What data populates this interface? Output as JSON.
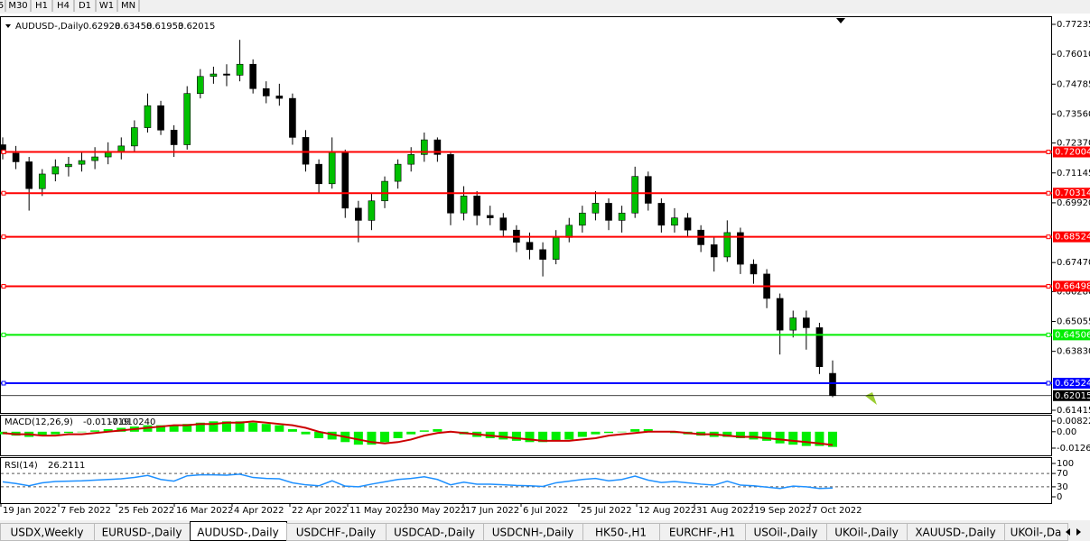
{
  "toolbar": {
    "timeframes": [
      "5",
      "M30",
      "H1",
      "H4",
      "D1",
      "W1",
      "MN"
    ]
  },
  "chart": {
    "symbol": "AUDUSD-,Daily",
    "candles": [
      [
        0.723,
        0.726,
        0.717,
        0.7195
      ],
      [
        0.7195,
        0.7225,
        0.713,
        0.716
      ],
      [
        0.716,
        0.718,
        0.696,
        0.705
      ],
      [
        0.705,
        0.713,
        0.702,
        0.711
      ],
      [
        0.711,
        0.717,
        0.708,
        0.714
      ],
      [
        0.714,
        0.718,
        0.71,
        0.715
      ],
      [
        0.715,
        0.72,
        0.712,
        0.7165
      ],
      [
        0.7165,
        0.722,
        0.713,
        0.718
      ],
      [
        0.718,
        0.724,
        0.715,
        0.72
      ],
      [
        0.72,
        0.726,
        0.717,
        0.7225
      ],
      [
        0.7225,
        0.733,
        0.72,
        0.73
      ],
      [
        0.73,
        0.744,
        0.728,
        0.739
      ],
      [
        0.739,
        0.741,
        0.727,
        0.729
      ],
      [
        0.729,
        0.731,
        0.718,
        0.723
      ],
      [
        0.723,
        0.747,
        0.721,
        0.744
      ],
      [
        0.744,
        0.754,
        0.742,
        0.751
      ],
      [
        0.751,
        0.755,
        0.748,
        0.752
      ],
      [
        0.752,
        0.756,
        0.747,
        0.7515
      ],
      [
        0.7515,
        0.766,
        0.749,
        0.756
      ],
      [
        0.756,
        0.758,
        0.744,
        0.746
      ],
      [
        0.746,
        0.749,
        0.74,
        0.743
      ],
      [
        0.743,
        0.748,
        0.739,
        0.742
      ],
      [
        0.742,
        0.744,
        0.723,
        0.726
      ],
      [
        0.726,
        0.729,
        0.712,
        0.715
      ],
      [
        0.715,
        0.717,
        0.703,
        0.707
      ],
      [
        0.707,
        0.726,
        0.705,
        0.72
      ],
      [
        0.72,
        0.721,
        0.693,
        0.697
      ],
      [
        0.697,
        0.7,
        0.683,
        0.692
      ],
      [
        0.692,
        0.703,
        0.688,
        0.7
      ],
      [
        0.7,
        0.71,
        0.697,
        0.708
      ],
      [
        0.708,
        0.717,
        0.705,
        0.715
      ],
      [
        0.715,
        0.722,
        0.712,
        0.719
      ],
      [
        0.719,
        0.728,
        0.716,
        0.725
      ],
      [
        0.725,
        0.726,
        0.716,
        0.719
      ],
      [
        0.719,
        0.72,
        0.69,
        0.695
      ],
      [
        0.695,
        0.706,
        0.692,
        0.702
      ],
      [
        0.702,
        0.704,
        0.69,
        0.694
      ],
      [
        0.694,
        0.698,
        0.69,
        0.693
      ],
      [
        0.693,
        0.695,
        0.685,
        0.688
      ],
      [
        0.688,
        0.69,
        0.679,
        0.683
      ],
      [
        0.683,
        0.687,
        0.676,
        0.68
      ],
      [
        0.68,
        0.683,
        0.669,
        0.676
      ],
      [
        0.676,
        0.688,
        0.674,
        0.685
      ],
      [
        0.685,
        0.693,
        0.683,
        0.69
      ],
      [
        0.69,
        0.698,
        0.687,
        0.695
      ],
      [
        0.695,
        0.704,
        0.692,
        0.699
      ],
      [
        0.699,
        0.701,
        0.688,
        0.692
      ],
      [
        0.692,
        0.698,
        0.687,
        0.695
      ],
      [
        0.695,
        0.714,
        0.693,
        0.71
      ],
      [
        0.71,
        0.712,
        0.696,
        0.699
      ],
      [
        0.699,
        0.701,
        0.687,
        0.69
      ],
      [
        0.69,
        0.697,
        0.687,
        0.693
      ],
      [
        0.693,
        0.695,
        0.685,
        0.688
      ],
      [
        0.688,
        0.69,
        0.679,
        0.682
      ],
      [
        0.682,
        0.685,
        0.671,
        0.677
      ],
      [
        0.677,
        0.692,
        0.675,
        0.687
      ],
      [
        0.687,
        0.689,
        0.67,
        0.674
      ],
      [
        0.674,
        0.676,
        0.666,
        0.67
      ],
      [
        0.67,
        0.672,
        0.656,
        0.66
      ],
      [
        0.66,
        0.662,
        0.637,
        0.647
      ],
      [
        0.647,
        0.655,
        0.644,
        0.652
      ],
      [
        0.652,
        0.655,
        0.639,
        0.648
      ],
      [
        0.648,
        0.65,
        0.629,
        0.632
      ],
      [
        0.62928,
        0.63458,
        0.61953,
        0.62015
      ]
    ],
    "bull_color": "#00c000",
    "bear_color": "#000000",
    "price_ticks": [
      0.77235,
      {
        "value": 0.7601,
        "label": "0.76010"
      },
      0.74785,
      {
        "value": 0.7356,
        "label": "0.73560"
      },
      {
        "value": 0.7237,
        "label": "0.72370"
      },
      0.71145,
      {
        "value": 0.6992,
        "label": "0.69920"
      },
      {
        "value": 0.6747,
        "label": "0.67470"
      },
      {
        "value": 0.6628,
        "label": "0.66280"
      },
      0.65055,
      {
        "value": 0.6383,
        "label": "0.63830"
      },
      0.61415
    ],
    "levels": [
      {
        "value": 0.72004,
        "color": "#ff0000"
      },
      {
        "value": 0.70314,
        "color": "#ff0000"
      },
      {
        "value": 0.68524,
        "color": "#ff0000"
      },
      {
        "value": 0.66498,
        "color": "#ff0000"
      },
      {
        "value": 0.64506,
        "color": "#00ee00"
      },
      {
        "value": 0.62524,
        "color": "#0000ff"
      }
    ],
    "dates": [
      "19 Jan 2022",
      "7 Feb 2022",
      "25 Feb 2022",
      "16 Mar 2022",
      "4 Apr 2022",
      "22 Apr 2022",
      "11 May 2022",
      "30 May 2022",
      "17 Jun 2022",
      "6 Jul 2022",
      "25 Jul 2022",
      "12 Aug 2022",
      "31 Aug 2022",
      "19 Sep 2022",
      "7 Oct 2022"
    ]
  },
  "macd": {
    "name": "MACD(12,26,9)",
    "main_label": -0.011719,
    "signal_label": {
      "value": -0.01024,
      "label": "-0.010240"
    },
    "ticks": [
      0.008223,
      {
        "value": 0,
        "label": "0.00"
      },
      -0.012669
    ],
    "histogram": [
      -0.002,
      -0.003,
      -0.004,
      -0.003,
      -0.002,
      -0.001,
      0.0,
      0.001,
      0.002,
      0.003,
      0.004,
      0.005,
      0.005,
      0.005,
      0.006,
      0.007,
      0.008,
      0.008,
      0.008,
      0.007,
      0.006,
      0.005,
      0.002,
      -0.002,
      -0.005,
      -0.006,
      -0.008,
      -0.01,
      -0.01,
      -0.008,
      -0.005,
      -0.002,
      0.001,
      0.002,
      0.0,
      -0.002,
      -0.004,
      -0.005,
      -0.006,
      -0.007,
      -0.008,
      -0.008,
      -0.007,
      -0.006,
      -0.004,
      -0.002,
      -0.001,
      0.0,
      0.002,
      0.002,
      0.0,
      -0.001,
      -0.002,
      -0.003,
      -0.004,
      -0.004,
      -0.005,
      -0.006,
      -0.007,
      -0.009,
      -0.01,
      -0.011,
      -0.011,
      -0.011719
    ],
    "signal": [
      -0.001,
      -0.002,
      -0.002,
      -0.003,
      -0.003,
      -0.002,
      -0.002,
      -0.001,
      0.0,
      0.001,
      0.002,
      0.003,
      0.004,
      0.005,
      0.005,
      0.006,
      0.006,
      0.007,
      0.007,
      0.008,
      0.007,
      0.006,
      0.005,
      0.003,
      0.0,
      -0.002,
      -0.004,
      -0.006,
      -0.008,
      -0.009,
      -0.008,
      -0.006,
      -0.003,
      -0.001,
      0.0,
      -0.001,
      -0.002,
      -0.003,
      -0.004,
      -0.005,
      -0.006,
      -0.007,
      -0.007,
      -0.007,
      -0.006,
      -0.005,
      -0.003,
      -0.002,
      -0.001,
      0.0,
      0.0,
      0.0,
      -0.001,
      -0.002,
      -0.002,
      -0.003,
      -0.004,
      -0.004,
      -0.005,
      -0.006,
      -0.007,
      -0.008,
      -0.009,
      -0.01024
    ],
    "hist_color": "#00ee00",
    "signal_color": "#cc0000"
  },
  "rsi": {
    "name": "RSI(14)",
    "ticks": [
      100,
      70,
      30,
      0
    ],
    "levels": [
      70,
      30
    ],
    "values": [
      45,
      40,
      33,
      42,
      46,
      47,
      48,
      50,
      52,
      54,
      58,
      64,
      52,
      47,
      63,
      66,
      66,
      65,
      68,
      58,
      55,
      54,
      42,
      36,
      33,
      48,
      32,
      30,
      38,
      45,
      52,
      55,
      60,
      52,
      36,
      44,
      38,
      38,
      36,
      34,
      33,
      31,
      42,
      47,
      52,
      55,
      48,
      52,
      62,
      50,
      43,
      46,
      42,
      38,
      35,
      47,
      35,
      33,
      29,
      25,
      32,
      30,
      25,
      26.2111
    ],
    "color": "#1e90ff"
  },
  "tabs": [
    "USDX,Weekly",
    "EURUSD-,Daily",
    "AUDUSD-,Daily",
    "USDCHF-,Daily",
    "USDCAD-,Daily",
    "USDCNH-,Daily",
    "HK50-,H1",
    "EURCHF-,H1",
    "USOil-,Daily",
    "UKOil-,Daily",
    "XAUUSD-,Daily",
    "UKOil-,Da"
  ],
  "active_tab": 2
}
